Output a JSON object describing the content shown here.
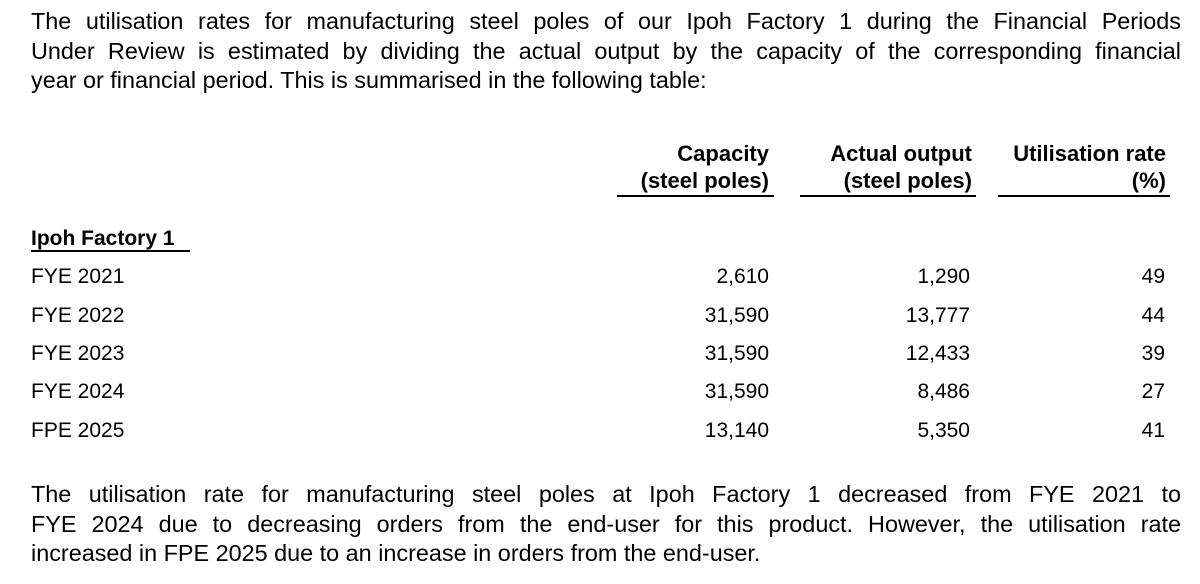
{
  "intro_paragraph": {
    "lines": [
      "The utilisation rates for manufacturing steel poles of our Ipoh Factory 1 during the Financial Periods",
      "Under Review is estimated by dividing the actual output by the capacity of the corresponding financial",
      "year or financial period. This is summarised in the following table:"
    ]
  },
  "table": {
    "headers": {
      "capacity": [
        "Capacity",
        "(steel poles)"
      ],
      "actual_output": [
        "Actual output",
        "(steel poles)"
      ],
      "utilisation_rate": [
        "Utilisation rate",
        "(%)"
      ]
    },
    "section_label": "Ipoh Factory 1",
    "rows": [
      {
        "period": "FYE 2021",
        "capacity": "2,610",
        "actual_output": "1,290",
        "utilisation_rate": "49"
      },
      {
        "period": "FYE 2022",
        "capacity": "31,590",
        "actual_output": "13,777",
        "utilisation_rate": "44"
      },
      {
        "period": "FYE 2023",
        "capacity": "31,590",
        "actual_output": "12,433",
        "utilisation_rate": "39"
      },
      {
        "period": "FYE 2024",
        "capacity": "31,590",
        "actual_output": "8,486",
        "utilisation_rate": "27"
      },
      {
        "period": "FPE 2025",
        "capacity": "13,140",
        "actual_output": "5,350",
        "utilisation_rate": "41"
      }
    ]
  },
  "closing_paragraph": {
    "lines": [
      "The utilisation rate for manufacturing steel poles at Ipoh Factory 1 decreased from FYE 2021 to",
      "FYE 2024 due to decreasing orders from the end-user for this product.  However, the utilisation rate",
      "increased in FPE 2025 due to an increase in orders from the end-user."
    ]
  }
}
